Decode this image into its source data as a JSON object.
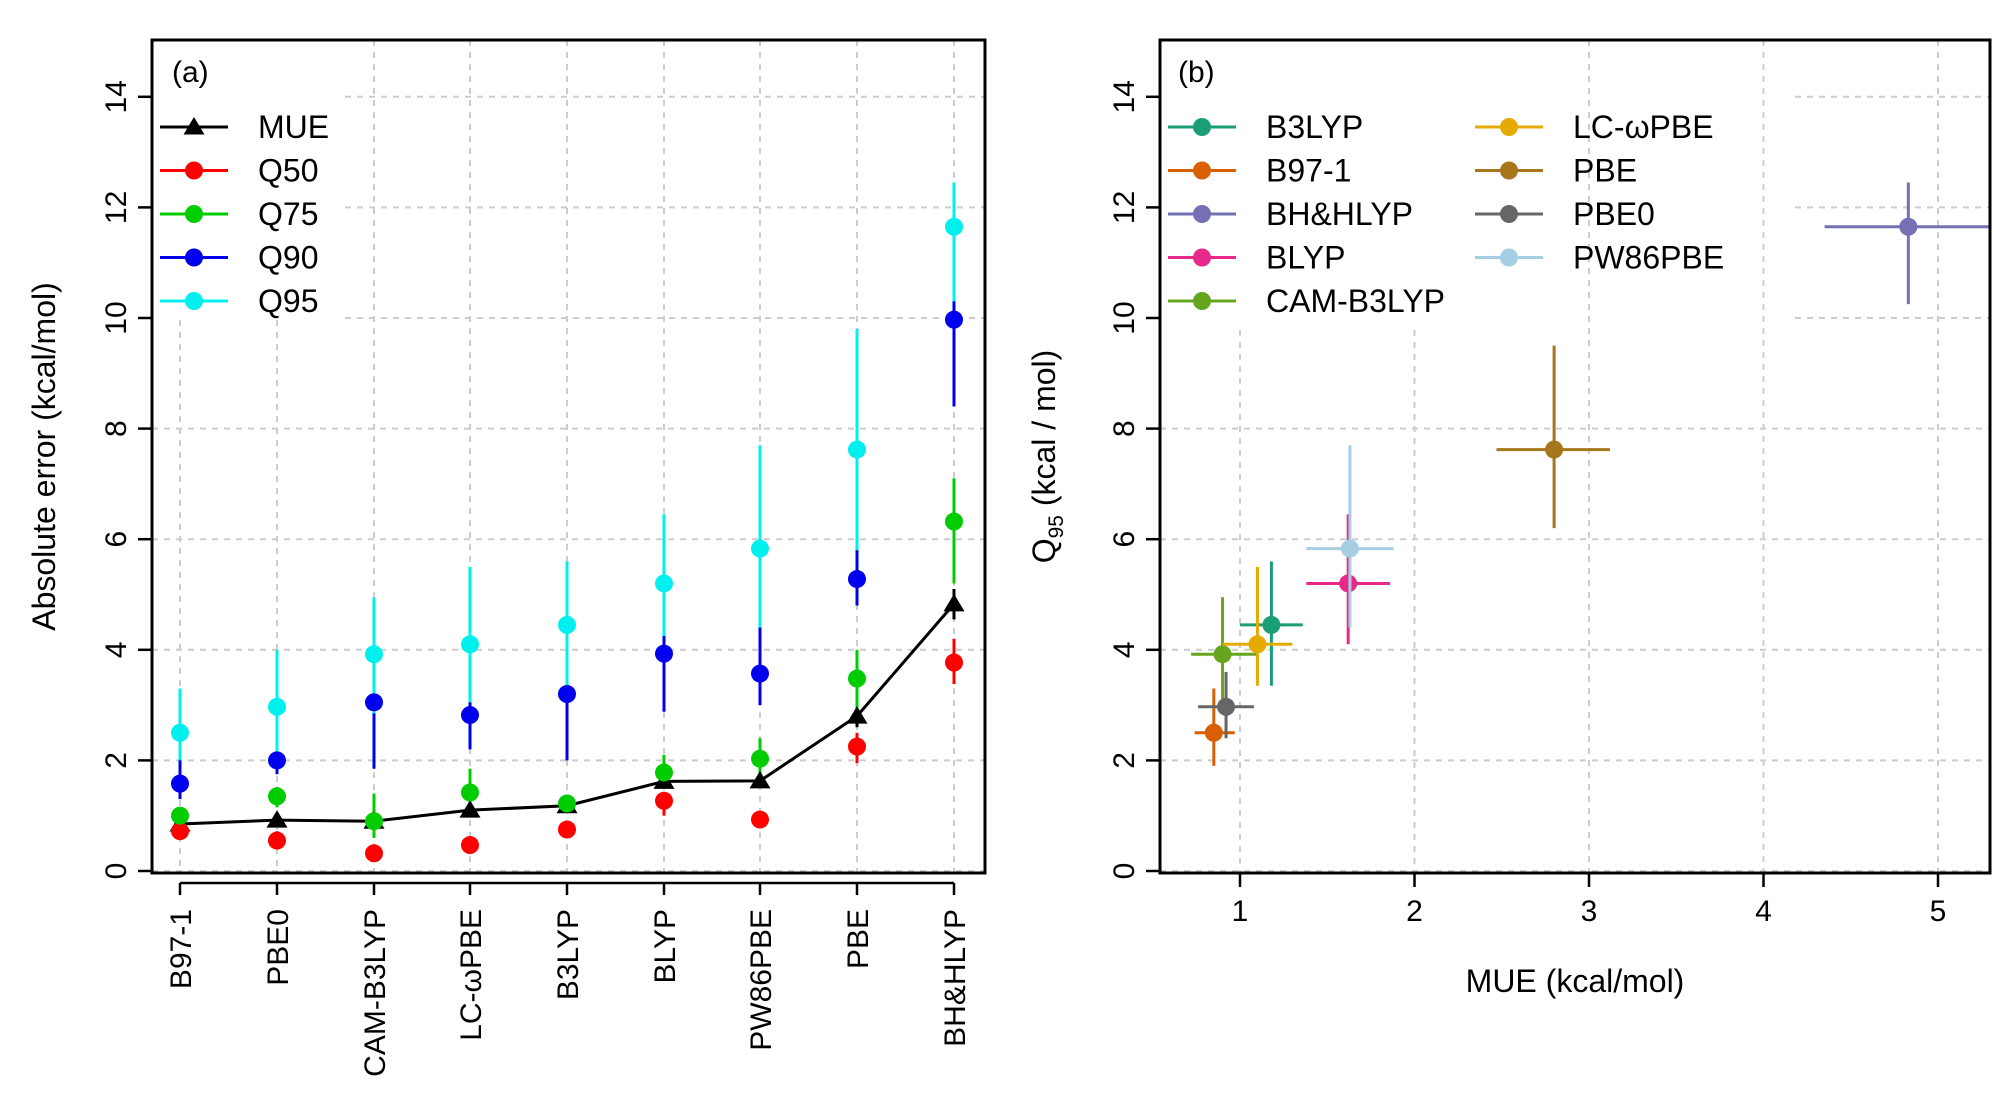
{
  "chart_data": [
    {
      "type": "line",
      "panel_label": "(a)",
      "ylabel": "Absolute error (kcal/mol)",
      "xlabel": "",
      "ylim": [
        0,
        14
      ],
      "y_ticks": [
        "0",
        "2",
        "4",
        "6",
        "8",
        "10",
        "12",
        "14"
      ],
      "grid": true,
      "legend_position": "top-left",
      "categories": [
        "B97-1",
        "PBE0",
        "CAM-B3LYP",
        "LC-ωPBE",
        "B3LYP",
        "BLYP",
        "PW86PBE",
        "PBE",
        "BH&HLYP"
      ],
      "series": [
        {
          "name": "MUE",
          "color": "#000000",
          "marker": "triangle",
          "connected": true,
          "values": [
            0.85,
            0.92,
            0.9,
            1.1,
            1.18,
            1.62,
            1.63,
            2.8,
            4.83
          ],
          "error_low": [
            0.8,
            0.85,
            0.82,
            1.03,
            1.1,
            1.52,
            1.55,
            2.6,
            4.55
          ],
          "error_high": [
            0.92,
            1.0,
            0.98,
            1.18,
            1.26,
            1.72,
            1.72,
            3.0,
            5.1
          ]
        },
        {
          "name": "Q50",
          "color": "#ff0000",
          "marker": "circle",
          "connected": false,
          "values": [
            0.72,
            0.55,
            0.32,
            0.47,
            0.75,
            1.27,
            0.93,
            2.25,
            3.77
          ],
          "error_low": [
            0.62,
            0.45,
            0.22,
            0.38,
            0.65,
            1.0,
            0.82,
            1.95,
            3.38
          ],
          "error_high": [
            0.82,
            0.72,
            0.42,
            0.6,
            0.88,
            1.4,
            1.05,
            2.5,
            4.2
          ]
        },
        {
          "name": "Q75",
          "color": "#00cc00",
          "marker": "circle",
          "connected": false,
          "values": [
            1.0,
            1.35,
            0.9,
            1.42,
            1.22,
            1.78,
            2.03,
            3.48,
            6.32
          ],
          "error_low": [
            0.85,
            1.15,
            0.6,
            1.05,
            1.05,
            1.5,
            1.75,
            2.9,
            5.2
          ],
          "error_high": [
            1.15,
            1.52,
            1.4,
            1.85,
            1.38,
            2.1,
            2.4,
            4.0,
            7.1
          ]
        },
        {
          "name": "Q90",
          "color": "#0000ee",
          "marker": "circle",
          "connected": false,
          "values": [
            1.58,
            2.0,
            3.05,
            2.82,
            3.2,
            3.93,
            3.57,
            5.28,
            9.97
          ],
          "error_low": [
            1.3,
            1.75,
            1.85,
            2.2,
            2.0,
            2.88,
            3.0,
            4.8,
            8.4
          ],
          "error_high": [
            2.2,
            2.8,
            3.7,
            3.9,
            3.92,
            4.55,
            4.8,
            7.15,
            11.05
          ]
        },
        {
          "name": "Q95",
          "color": "#00f0f0",
          "marker": "circle",
          "connected": false,
          "values": [
            2.5,
            2.97,
            3.92,
            4.1,
            4.45,
            5.2,
            5.83,
            7.62,
            11.65
          ],
          "error_low": [
            2.0,
            2.1,
            2.85,
            3.05,
            3.35,
            4.25,
            4.4,
            5.8,
            10.3
          ],
          "error_high": [
            3.3,
            4.0,
            4.95,
            5.5,
            5.6,
            6.45,
            7.7,
            9.8,
            12.45
          ]
        }
      ]
    },
    {
      "type": "scatter",
      "panel_label": "(b)",
      "xlabel": "MUE (kcal/mol)",
      "ylabel_main": "Q",
      "ylabel_sub": "95",
      "ylabel_rest": " (kcal / mol)",
      "xlim": [
        0.5,
        5.3
      ],
      "ylim": [
        0,
        14
      ],
      "x_ticks": [
        "1",
        "2",
        "3",
        "4",
        "5"
      ],
      "y_ticks": [
        "0",
        "2",
        "4",
        "6",
        "8",
        "10",
        "12",
        "14"
      ],
      "grid": true,
      "legend_position": "top-left",
      "points": [
        {
          "name": "B3LYP",
          "color": "#1b9e77",
          "x": 1.18,
          "y": 4.45,
          "x_err": [
            1.0,
            1.36
          ],
          "y_err": [
            3.35,
            5.6
          ]
        },
        {
          "name": "B97-1",
          "color": "#d95f02",
          "x": 0.85,
          "y": 2.5,
          "x_err": [
            0.74,
            0.97
          ],
          "y_err": [
            1.9,
            3.3
          ]
        },
        {
          "name": "BH&HLYP",
          "color": "#7570b3",
          "x": 4.83,
          "y": 11.65,
          "x_err": [
            4.35,
            5.3
          ],
          "y_err": [
            10.25,
            12.45
          ]
        },
        {
          "name": "BLYP",
          "color": "#e7298a",
          "x": 1.62,
          "y": 5.2,
          "x_err": [
            1.38,
            1.86
          ],
          "y_err": [
            4.1,
            6.45
          ]
        },
        {
          "name": "CAM-B3LYP",
          "color": "#66a61e",
          "x": 0.9,
          "y": 3.92,
          "x_err": [
            0.72,
            1.1
          ],
          "y_err": [
            3.1,
            4.95
          ]
        },
        {
          "name": "LC-ωPBE",
          "color": "#e6ab02",
          "x": 1.1,
          "y": 4.1,
          "x_err": [
            0.9,
            1.3
          ],
          "y_err": [
            3.35,
            5.5
          ]
        },
        {
          "name": "PBE",
          "color": "#a6761d",
          "x": 2.8,
          "y": 7.62,
          "x_err": [
            2.47,
            3.12
          ],
          "y_err": [
            6.2,
            9.5
          ]
        },
        {
          "name": "PBE0",
          "color": "#666666",
          "x": 0.92,
          "y": 2.97,
          "x_err": [
            0.76,
            1.08
          ],
          "y_err": [
            2.4,
            3.6
          ]
        },
        {
          "name": "PW86PBE",
          "color": "#a6cee3",
          "x": 1.63,
          "y": 5.83,
          "x_err": [
            1.38,
            1.88
          ],
          "y_err": [
            4.4,
            7.7
          ]
        }
      ],
      "legend_columns": [
        [
          "B3LYP",
          "B97-1",
          "BH&HLYP",
          "BLYP",
          "CAM-B3LYP"
        ],
        [
          "LC-ωPBE",
          "PBE",
          "PBE0",
          "PW86PBE"
        ]
      ]
    }
  ]
}
